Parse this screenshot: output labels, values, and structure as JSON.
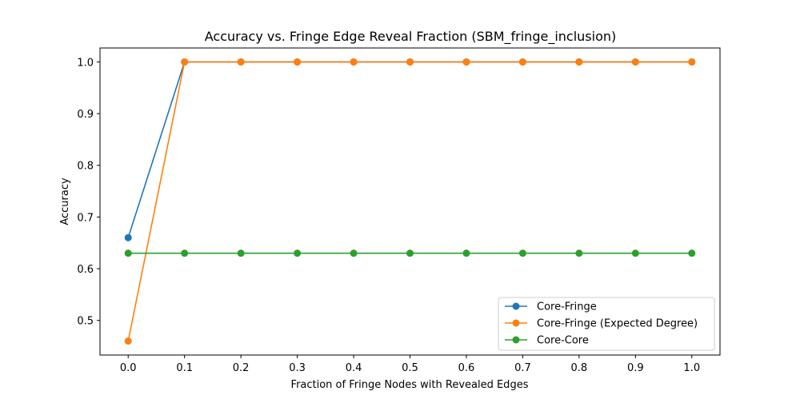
{
  "chart_data": {
    "type": "line",
    "title": "Accuracy vs. Fringe Edge Reveal Fraction (SBM_fringe_inclusion)",
    "xlabel": "Fraction of Fringe Nodes with Revealed Edges",
    "ylabel": "Accuracy",
    "x": [
      0.0,
      0.1,
      0.2,
      0.3,
      0.4,
      0.5,
      0.6,
      0.7,
      0.8,
      0.9,
      1.0
    ],
    "x_tick_labels": [
      "0.0",
      "0.1",
      "0.2",
      "0.3",
      "0.4",
      "0.5",
      "0.6",
      "0.7",
      "0.8",
      "0.9",
      "1.0"
    ],
    "y_ticks": [
      0.5,
      0.6,
      0.7,
      0.8,
      0.9,
      1.0
    ],
    "y_tick_labels": [
      "0.5",
      "0.6",
      "0.7",
      "0.8",
      "0.9",
      "1.0"
    ],
    "xlim": [
      -0.05,
      1.05
    ],
    "ylim": [
      0.433,
      1.027
    ],
    "grid": false,
    "legend_position": "lower-right",
    "series": [
      {
        "name": "Core-Fringe",
        "color": "#1f77b4",
        "marker": "circle",
        "values": [
          0.66,
          1.0,
          1.0,
          1.0,
          1.0,
          1.0,
          1.0,
          1.0,
          1.0,
          1.0,
          1.0
        ]
      },
      {
        "name": "Core-Fringe (Expected Degree)",
        "color": "#ff7f0e",
        "marker": "circle",
        "values": [
          0.46,
          1.0,
          1.0,
          1.0,
          1.0,
          1.0,
          1.0,
          1.0,
          1.0,
          1.0,
          1.0
        ]
      },
      {
        "name": "Core-Core",
        "color": "#2ca02c",
        "marker": "circle",
        "values": [
          0.63,
          0.63,
          0.63,
          0.63,
          0.63,
          0.63,
          0.63,
          0.63,
          0.63,
          0.63,
          0.63
        ]
      }
    ]
  }
}
